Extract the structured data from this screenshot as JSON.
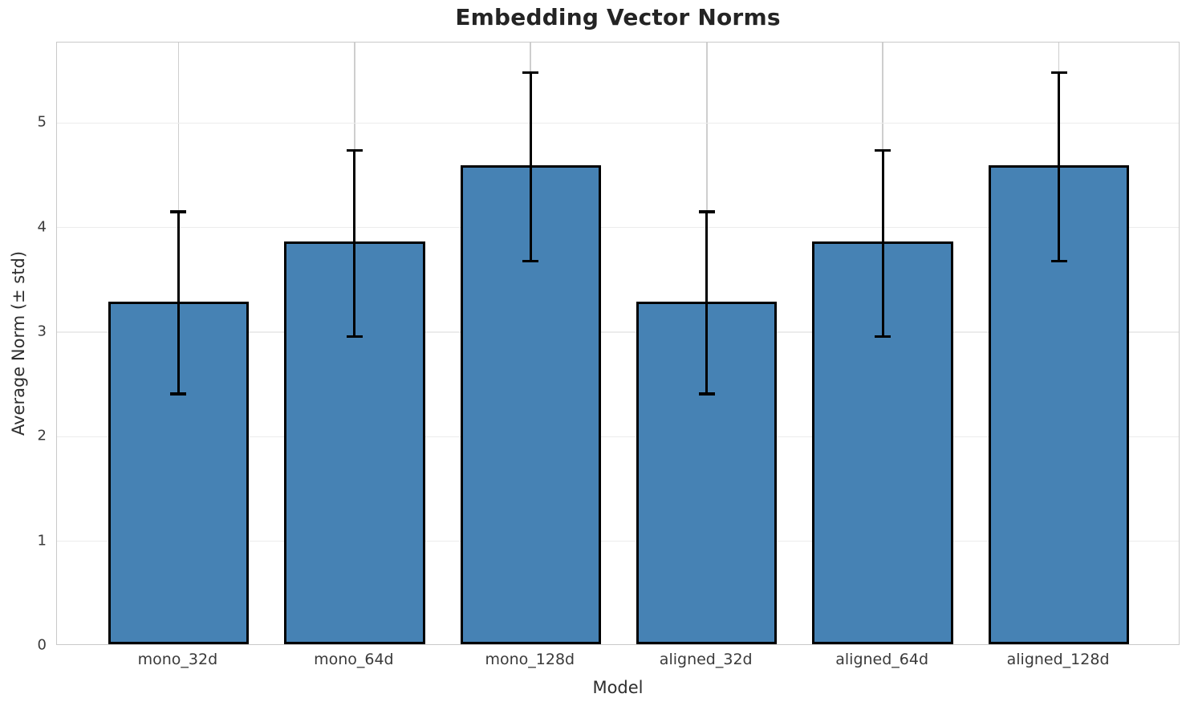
{
  "chart_data": {
    "type": "bar",
    "title": "Embedding Vector Norms",
    "xlabel": "Model",
    "ylabel": "Average Norm (± std)",
    "categories": [
      "mono_32d",
      "mono_64d",
      "mono_128d",
      "aligned_32d",
      "aligned_64d",
      "aligned_128d"
    ],
    "values": [
      3.28,
      3.85,
      4.58,
      3.28,
      3.85,
      4.58
    ],
    "errors": [
      0.87,
      0.89,
      0.9,
      0.87,
      0.89,
      0.9
    ],
    "yticks": [
      0,
      1,
      2,
      3,
      4,
      5
    ],
    "ylim": [
      0,
      5.77
    ],
    "grid": true,
    "legend_position": "none",
    "bar_color": "#4682b4",
    "bar_edge_color": "#000000",
    "error_bar_color": "#000000"
  }
}
